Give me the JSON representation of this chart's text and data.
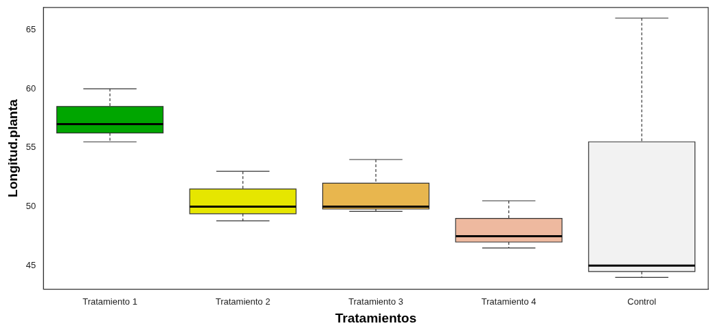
{
  "chart_data": {
    "type": "box",
    "xlabel": "Tratamientos",
    "ylabel": "Longitud.planta",
    "categories": [
      "Tratamiento 1",
      "Tratamiento 2",
      "Tratamiento 3",
      "Tratamiento 4",
      "Control"
    ],
    "colors": [
      "#00a600",
      "#e6e600",
      "#e8b64e",
      "#eeb99f",
      "#f2f2f2"
    ],
    "boxes": [
      {
        "low": 55.5,
        "q1": 56.25,
        "median": 57,
        "q3": 58.5,
        "high": 60
      },
      {
        "low": 48.8,
        "q1": 49.4,
        "median": 50,
        "q3": 51.5,
        "high": 53
      },
      {
        "low": 49.6,
        "q1": 49.8,
        "median": 50,
        "q3": 52,
        "high": 54
      },
      {
        "low": 46.5,
        "q1": 47,
        "median": 47.5,
        "q3": 49,
        "high": 50.5
      },
      {
        "low": 44,
        "q1": 44.5,
        "median": 45,
        "q3": 55.5,
        "high": 66
      }
    ],
    "ylim": [
      43,
      66.9
    ],
    "yticks": [
      45,
      50,
      55,
      60,
      65
    ],
    "grid": false,
    "legend": false
  }
}
